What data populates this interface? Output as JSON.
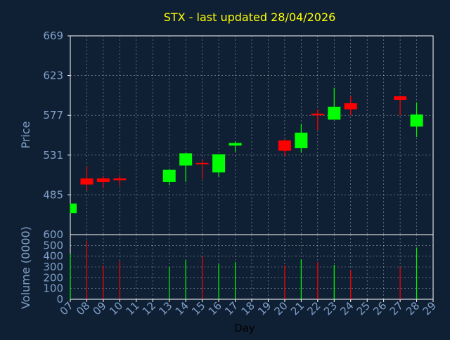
{
  "chart_data": {
    "type": "candlestick",
    "title": "STX - last updated 28/04/2026",
    "ylabel": "Price",
    "ylabel2": "Volume (0000)",
    "xlabel": "Day",
    "ylim": [
      439,
      669
    ],
    "yticks": [
      485,
      531,
      577,
      623,
      669
    ],
    "y2lim": [
      0,
      600
    ],
    "y2ticks": [
      0,
      100,
      200,
      300,
      400,
      500,
      600
    ],
    "xticks": [
      "07",
      "08",
      "09",
      "10",
      "11",
      "12",
      "13",
      "14",
      "15",
      "16",
      "17",
      "18",
      "19",
      "20",
      "21",
      "22",
      "23",
      "24",
      "25",
      "26",
      "27",
      "28",
      "29"
    ],
    "grid": true,
    "colors": {
      "background": "#102034",
      "text": "#7fa0c8",
      "title": "#ffff00",
      "up": "#00ff00",
      "down": "#ff0000",
      "grid": "#ffffff",
      "axis": "#ffffff"
    },
    "candles": [
      {
        "day": "07",
        "open": 464,
        "high": 475,
        "low": 464,
        "close": 475,
        "volume": 420
      },
      {
        "day": "08",
        "open": 504,
        "high": 518,
        "low": 490,
        "close": 497,
        "volume": 545
      },
      {
        "day": "09",
        "open": 504,
        "high": 507,
        "low": 493,
        "close": 500,
        "volume": 315
      },
      {
        "day": "10",
        "open": 504,
        "high": 508,
        "low": 495,
        "close": 502,
        "volume": 355
      },
      {
        "day": "13",
        "open": 500,
        "high": 515,
        "low": 496,
        "close": 514,
        "volume": 300
      },
      {
        "day": "14",
        "open": 519,
        "high": 533,
        "low": 500,
        "close": 533,
        "volume": 365
      },
      {
        "day": "15",
        "open": 522,
        "high": 526,
        "low": 503,
        "close": 521,
        "volume": 395
      },
      {
        "day": "16",
        "open": 511,
        "high": 532,
        "low": 506,
        "close": 532,
        "volume": 325
      },
      {
        "day": "17",
        "open": 542,
        "high": 547,
        "low": 535,
        "close": 545,
        "volume": 345
      },
      {
        "day": "20",
        "open": 548,
        "high": 549,
        "low": 530,
        "close": 536,
        "volume": 315
      },
      {
        "day": "21",
        "open": 539,
        "high": 567,
        "low": 534,
        "close": 557,
        "volume": 370
      },
      {
        "day": "22",
        "open": 579,
        "high": 584,
        "low": 560,
        "close": 577,
        "volume": 345
      },
      {
        "day": "23",
        "open": 572,
        "high": 609,
        "low": 572,
        "close": 587,
        "volume": 320
      },
      {
        "day": "24",
        "open": 591,
        "high": 599,
        "low": 577,
        "close": 584,
        "volume": 270
      },
      {
        "day": "27",
        "open": 599,
        "high": 600,
        "low": 577,
        "close": 595,
        "volume": 300
      },
      {
        "day": "28",
        "open": 564,
        "high": 592,
        "low": 552,
        "close": 578,
        "volume": 480
      }
    ]
  }
}
